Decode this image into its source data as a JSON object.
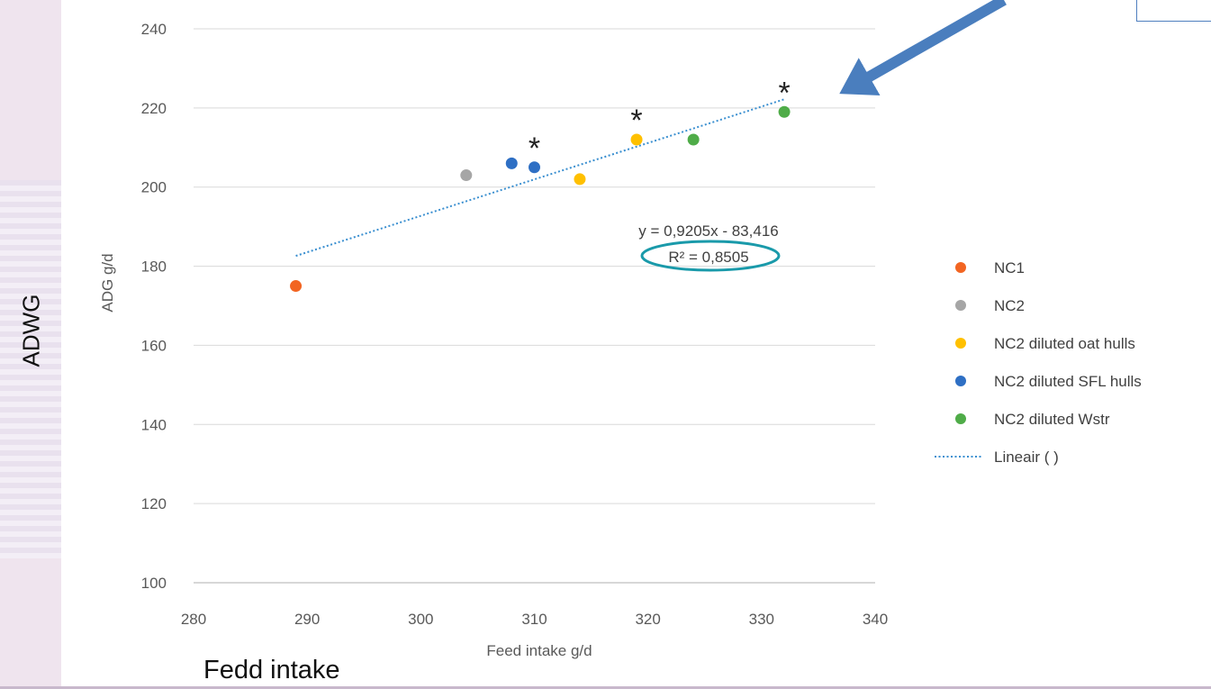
{
  "slide": {
    "vertical_label": "ADWG",
    "bottom_label": "Fedd intake"
  },
  "chart_data": {
    "type": "scatter",
    "title": "",
    "xlabel": "Feed intake g/d",
    "ylabel": "ADG g/d",
    "xlim": [
      280,
      340
    ],
    "ylim": [
      100,
      240
    ],
    "x_ticks": [
      280,
      290,
      300,
      310,
      320,
      330,
      340
    ],
    "y_ticks": [
      100,
      120,
      140,
      160,
      180,
      200,
      220,
      240
    ],
    "grid": "horizontal",
    "legend_position": "right",
    "series": [
      {
        "name": "NC1",
        "color": "#f26522",
        "points": [
          [
            289,
            175
          ]
        ]
      },
      {
        "name": "NC2",
        "color": "#a6a6a6",
        "points": [
          [
            304,
            203
          ]
        ]
      },
      {
        "name": "NC2 diluted oat hulls",
        "color": "#ffc000",
        "points": [
          [
            314,
            202
          ],
          [
            319,
            212
          ]
        ]
      },
      {
        "name": "NC2 diluted SFL hulls",
        "color": "#2e6fc4",
        "points": [
          [
            308,
            206
          ],
          [
            310,
            205
          ]
        ]
      },
      {
        "name": "NC2 diluted Wstr",
        "color": "#4fac48",
        "points": [
          [
            324,
            212
          ],
          [
            332,
            219
          ]
        ]
      }
    ],
    "trendline": {
      "name": "Lineair ( )",
      "color": "#3a8fd0",
      "slope": 0.9205,
      "intercept": -83.416,
      "x_range": [
        289,
        332
      ],
      "equation": "y = 0,9205x - 83,416",
      "r2_label": "R² = 0,8505",
      "r2_highlight_color": "#1a9aaa"
    },
    "significance_markers": [
      {
        "text": "*",
        "x": 310,
        "y": 205
      },
      {
        "text": "*",
        "x": 319,
        "y": 212
      },
      {
        "text": "*",
        "x": 332,
        "y": 219
      }
    ],
    "arrow": {
      "color": "#4a7ebe",
      "points_to": "trendline end"
    }
  }
}
